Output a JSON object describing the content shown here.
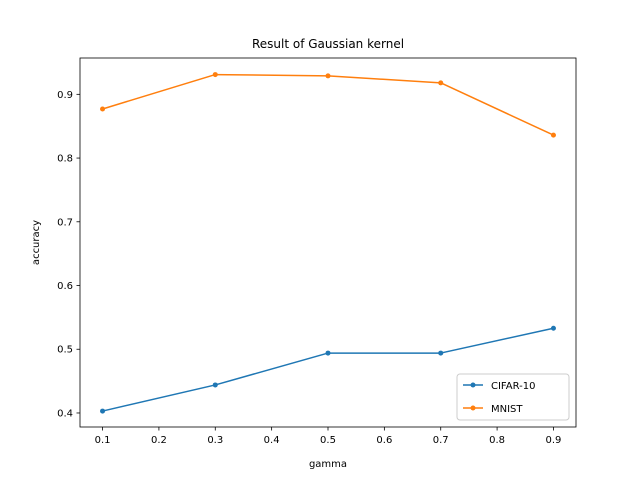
{
  "chart_data": {
    "type": "line",
    "title": "Result of Gaussian kernel",
    "xlabel": "gamma",
    "ylabel": "accuracy",
    "x": [
      0.1,
      0.3,
      0.5,
      0.7,
      0.9
    ],
    "xlim": [
      0.06,
      0.94
    ],
    "ylim": [
      0.378,
      0.957
    ],
    "xticks": [
      0.1,
      0.2,
      0.3,
      0.4,
      0.5,
      0.6,
      0.7,
      0.8,
      0.9
    ],
    "xtick_labels": [
      "0.1",
      "0.2",
      "0.3",
      "0.4",
      "0.5",
      "0.6",
      "0.7",
      "0.8",
      "0.9"
    ],
    "yticks": [
      0.4,
      0.5,
      0.6,
      0.7,
      0.8,
      0.9
    ],
    "ytick_labels": [
      "0.4",
      "0.5",
      "0.6",
      "0.7",
      "0.8",
      "0.9"
    ],
    "grid": false,
    "legend_position": "lower-right",
    "series": [
      {
        "name": "CIFAR-10",
        "color": "#1f77b4",
        "values": [
          0.403,
          0.444,
          0.494,
          0.494,
          0.533
        ]
      },
      {
        "name": "MNIST",
        "color": "#ff7f0e",
        "values": [
          0.877,
          0.931,
          0.929,
          0.918,
          0.836
        ]
      }
    ]
  }
}
